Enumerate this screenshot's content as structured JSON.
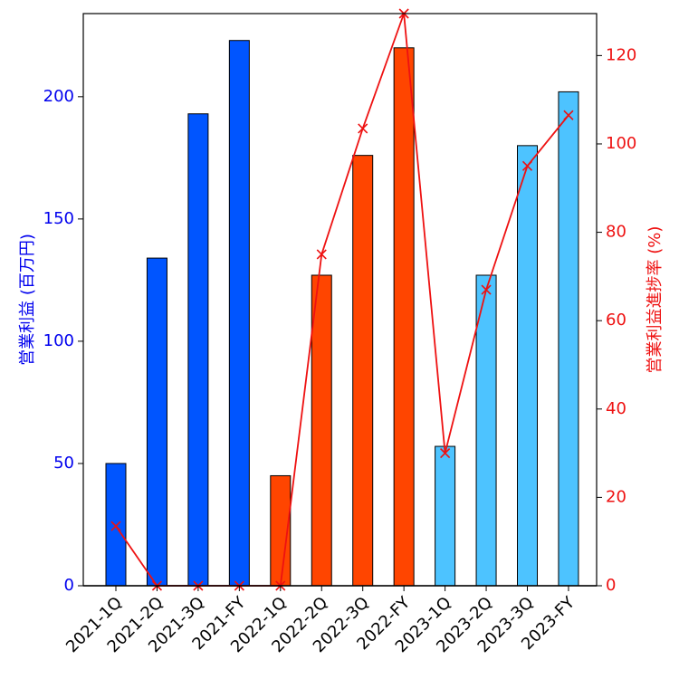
{
  "chart_data": {
    "type": "bar+line",
    "categories": [
      "2021-1Q",
      "2021-2Q",
      "2021-3Q",
      "2021-FY",
      "2022-1Q",
      "2022-2Q",
      "2022-3Q",
      "2022-FY",
      "2023-1Q",
      "2023-2Q",
      "2023-3Q",
      "2023-FY"
    ],
    "bar_series": {
      "name": "営業利益 (百万円)",
      "values": [
        50,
        134,
        193,
        223,
        45,
        127,
        176,
        220,
        57,
        127,
        180,
        202
      ],
      "colors": [
        "#0055ff",
        "#0055ff",
        "#0055ff",
        "#0055ff",
        "#ff4500",
        "#ff4500",
        "#ff4500",
        "#ff4500",
        "#4dc3ff",
        "#4dc3ff",
        "#4dc3ff",
        "#4dc3ff"
      ]
    },
    "line_series": {
      "name": "営業利益進捗率 (%)",
      "values": [
        13.5,
        0,
        0,
        0,
        0,
        75,
        103.5,
        129.5,
        30,
        67,
        95,
        106.5
      ],
      "color": "#ee1111",
      "marker": "x"
    },
    "y_left": {
      "label": "営業利益 (百万円)",
      "lim": [
        0,
        234
      ],
      "ticks": [
        0,
        50,
        100,
        150,
        200
      ],
      "color": "#0000ee"
    },
    "y_right": {
      "label": "営業利益進捗率 (%)",
      "lim": [
        0,
        129.5
      ],
      "ticks": [
        0,
        20,
        40,
        60,
        80,
        100,
        120
      ],
      "color": "#ee1111"
    }
  }
}
